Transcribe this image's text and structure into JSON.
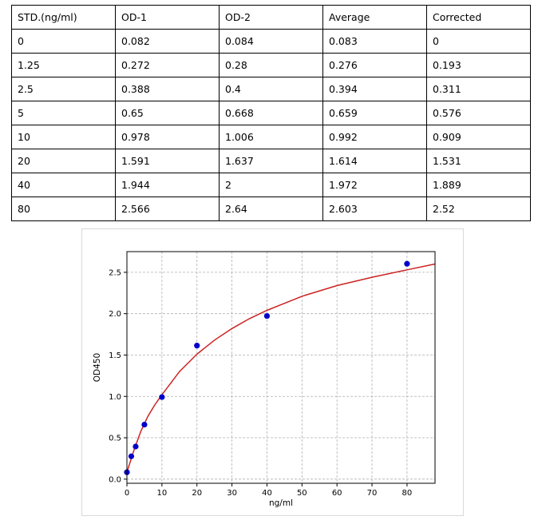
{
  "table": {
    "headers": [
      "STD.(ng/ml)",
      "OD-1",
      "OD-2",
      "Average",
      "Corrected"
    ],
    "rows": [
      [
        "0",
        "0.082",
        "0.084",
        "0.083",
        "0"
      ],
      [
        "1.25",
        "0.272",
        "0.28",
        "0.276",
        "0.193"
      ],
      [
        "2.5",
        "0.388",
        "0.4",
        "0.394",
        "0.311"
      ],
      [
        "5",
        "0.65",
        "0.668",
        "0.659",
        "0.576"
      ],
      [
        "10",
        "0.978",
        "1.006",
        "0.992",
        "0.909"
      ],
      [
        "20",
        "1.591",
        "1.637",
        "1.614",
        "1.531"
      ],
      [
        "40",
        "1.944",
        "2",
        "1.972",
        "1.889"
      ],
      [
        "80",
        "2.566",
        "2.64",
        "2.603",
        "2.52"
      ]
    ]
  },
  "chart_data": {
    "type": "scatter",
    "title": "",
    "xlabel": "ng/ml",
    "ylabel": "OD450",
    "xlim": [
      0,
      88
    ],
    "ylim": [
      -0.05,
      2.75
    ],
    "xticks": [
      0,
      10,
      20,
      30,
      40,
      50,
      60,
      70,
      80
    ],
    "yticks": [
      "0.0",
      "0.5",
      "1.0",
      "1.5",
      "2.0",
      "2.5"
    ],
    "grid": true,
    "points": {
      "x": [
        0,
        1.25,
        2.5,
        5,
        10,
        20,
        40,
        80
      ],
      "y": [
        0.083,
        0.276,
        0.394,
        0.659,
        0.992,
        1.614,
        1.972,
        2.603
      ],
      "color": "#0000cc"
    },
    "fit_curve": {
      "x": [
        0,
        2,
        4,
        6,
        8,
        10,
        15,
        20,
        25,
        30,
        35,
        40,
        50,
        60,
        70,
        80,
        88
      ],
      "y": [
        0.083,
        0.35,
        0.58,
        0.76,
        0.9,
        1.02,
        1.3,
        1.51,
        1.68,
        1.82,
        1.94,
        2.04,
        2.21,
        2.34,
        2.44,
        2.53,
        2.6
      ],
      "color": "#cc2222"
    }
  }
}
